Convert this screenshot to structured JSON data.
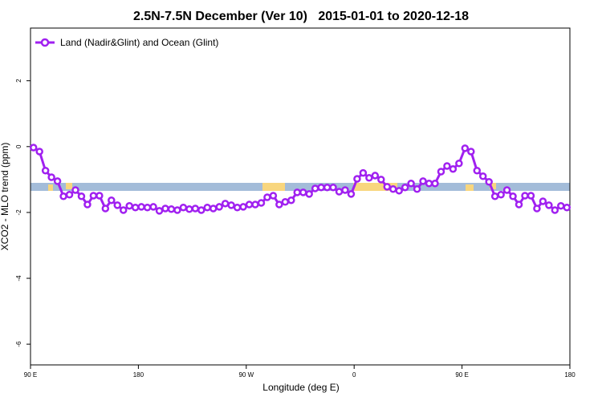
{
  "chart_data": {
    "type": "line",
    "title": "2.5N-7.5N December (Ver 10)   2015-01-01 to 2020-12-18",
    "x_label": "Longitude (deg E)",
    "y_label": "XCO2 - MLO trend (ppm)",
    "xlim": [
      90,
      540
    ],
    "ylim": [
      -6.63,
      3.6
    ],
    "xticks": [
      {
        "value": 90,
        "label": "90 E"
      },
      180,
      {
        "value": 270,
        "label": "90 W"
      },
      {
        "value": 360,
        "label": "0"
      },
      {
        "value": 450,
        "label": "90 E"
      },
      {
        "value": 540,
        "label": "180"
      }
    ],
    "yticks": [
      -6,
      -4,
      -2,
      0,
      2
    ],
    "legend": "top-left",
    "x": [
      92.5,
      97.5,
      102.5,
      107.5,
      112.5,
      117.5,
      122.5,
      127.5,
      132.5,
      137.5,
      142.5,
      147.5,
      152.5,
      157.5,
      162.5,
      167.5,
      172.5,
      177.5,
      182.5,
      187.5,
      192.5,
      197.5,
      202.5,
      207.5,
      212.5,
      217.5,
      222.5,
      227.5,
      232.5,
      237.5,
      242.5,
      247.5,
      252.5,
      257.5,
      262.5,
      267.5,
      272.5,
      277.5,
      282.5,
      287.5,
      292.5,
      297.5,
      302.5,
      307.5,
      312.5,
      317.5,
      322.5,
      327.5,
      332.5,
      337.5,
      342.5,
      347.5,
      352.5,
      357.5,
      362.5,
      367.5,
      372.5,
      377.5,
      382.5,
      387.5,
      392.5,
      397.5,
      402.5,
      407.5,
      412.5,
      417.5,
      422.5,
      427.5,
      432.5,
      437.5,
      442.5,
      447.5,
      452.5,
      457.5,
      462.5,
      467.5,
      472.5,
      477.5,
      482.5,
      487.5,
      492.5,
      497.5,
      502.5,
      507.5,
      512.5,
      517.5,
      522.5,
      527.5,
      532.5,
      537.5
    ],
    "series": [
      {
        "name": "Land (Nadir&Glint) and Ocean (Glint)",
        "color": "#a020f0",
        "values": [
          -0.03,
          -0.15,
          -0.73,
          -0.93,
          -1.05,
          -1.51,
          -1.46,
          -1.32,
          -1.51,
          -1.76,
          -1.49,
          -1.49,
          -1.88,
          -1.63,
          -1.78,
          -1.93,
          -1.8,
          -1.85,
          -1.83,
          -1.85,
          -1.83,
          -1.95,
          -1.88,
          -1.9,
          -1.93,
          -1.85,
          -1.9,
          -1.88,
          -1.93,
          -1.85,
          -1.88,
          -1.83,
          -1.73,
          -1.78,
          -1.85,
          -1.83,
          -1.76,
          -1.76,
          -1.71,
          -1.54,
          -1.49,
          -1.76,
          -1.68,
          -1.63,
          -1.39,
          -1.39,
          -1.44,
          -1.27,
          -1.24,
          -1.24,
          -1.24,
          -1.37,
          -1.32,
          -1.44,
          -0.98,
          -0.8,
          -0.95,
          -0.88,
          -1.0,
          -1.22,
          -1.29,
          -1.34,
          -1.24,
          -1.12,
          -1.29,
          -1.05,
          -1.12,
          -1.12,
          -0.76,
          -0.59,
          -0.68,
          -0.51,
          -0.05,
          -0.15,
          -0.73,
          -0.9,
          -1.07,
          -1.51,
          -1.46,
          -1.32,
          -1.51,
          -1.76,
          -1.49,
          -1.49,
          -1.88,
          -1.66,
          -1.78,
          -1.93,
          -1.8,
          -1.85
        ]
      }
    ]
  }
}
